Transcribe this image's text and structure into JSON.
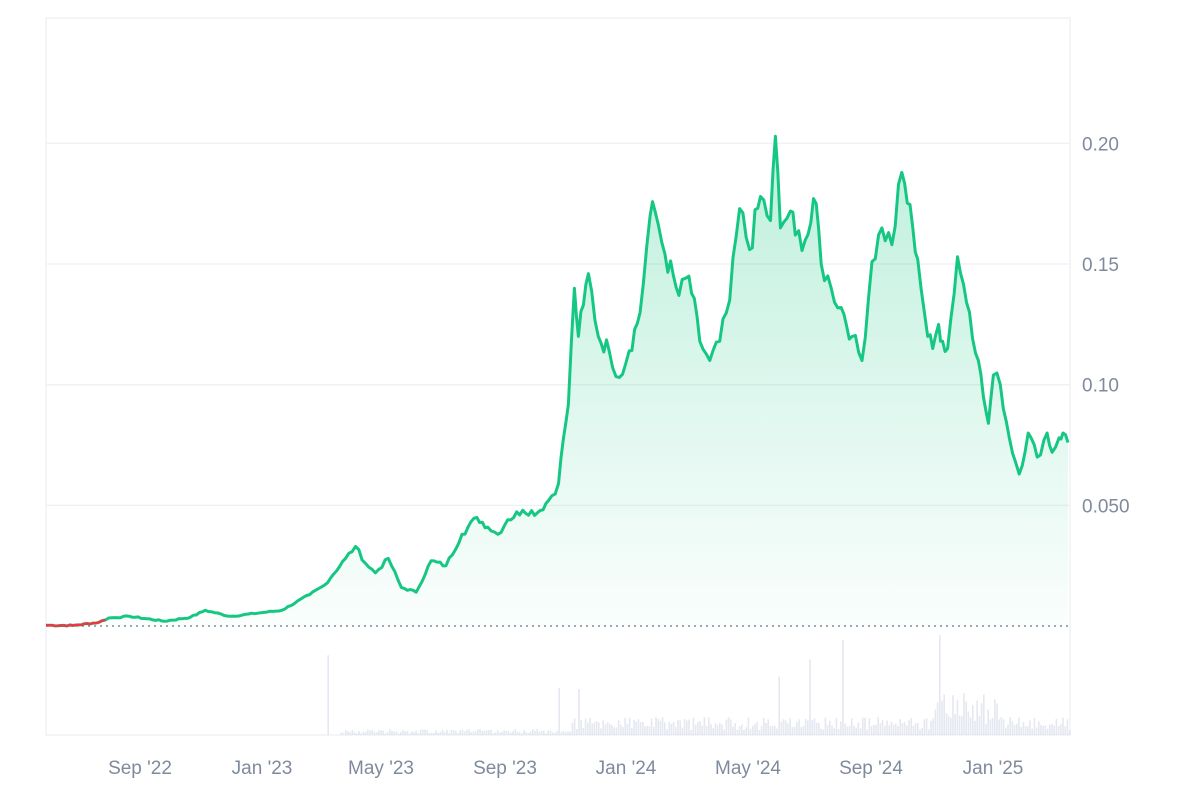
{
  "chart_data": {
    "type": "area",
    "title": "",
    "xlabel": "",
    "ylabel": "",
    "x_tick_labels": [
      "Sep '22",
      "Jan '23",
      "May '23",
      "Sep '23",
      "Jan '24",
      "May '24",
      "Sep '24",
      "Jan '25"
    ],
    "y_tick_labels": [
      "0.20",
      "0.15",
      "0.10",
      "0.050"
    ],
    "y_ticks": [
      0.2,
      0.15,
      0.1,
      0.05
    ],
    "ylim": [
      0,
      0.25
    ],
    "xlim": [
      "2022-06-18",
      "2025-04-12"
    ],
    "grid": true,
    "baseline": 0.0,
    "colors": {
      "line": "#16c784",
      "start_segment": "#ea3943",
      "volume": "#cfd6e4"
    },
    "series": [
      {
        "x": [
          "2022-06-18",
          "2022-07-15",
          "2022-08-10",
          "2022-08-20",
          "2022-09-10",
          "2022-10-15",
          "2022-11-10",
          "2022-11-25",
          "2022-12-20",
          "2023-01-20",
          "2023-02-10",
          "2023-03-10",
          "2023-03-25",
          "2023-04-15",
          "2023-04-25",
          "2023-05-05",
          "2023-05-15",
          "2023-05-28",
          "2023-06-10",
          "2023-06-25",
          "2023-07-10",
          "2023-07-25",
          "2023-08-10",
          "2023-08-25",
          "2023-09-05",
          "2023-09-15",
          "2023-09-25",
          "2023-10-10",
          "2023-10-25",
          "2023-11-05",
          "2023-11-15",
          "2023-11-20",
          "2023-11-25",
          "2023-12-01",
          "2023-12-05",
          "2023-12-10",
          "2023-12-15",
          "2023-12-25",
          "2024-01-05",
          "2024-01-15",
          "2024-01-25",
          "2024-02-05",
          "2024-02-15",
          "2024-02-20",
          "2024-03-01",
          "2024-03-15",
          "2024-03-25",
          "2024-04-05",
          "2024-04-15",
          "2024-04-25",
          "2024-05-05",
          "2024-05-15",
          "2024-05-25",
          "2024-06-05",
          "2024-06-15",
          "2024-06-20",
          "2024-06-25",
          "2024-07-05",
          "2024-07-10",
          "2024-07-20",
          "2024-07-31",
          "2024-08-05",
          "2024-08-15",
          "2024-08-25",
          "2024-09-05",
          "2024-09-15",
          "2024-09-25",
          "2024-10-05",
          "2024-10-15",
          "2024-10-25",
          "2024-11-05",
          "2024-11-10",
          "2024-11-20",
          "2024-11-25",
          "2024-12-01",
          "2024-12-05",
          "2024-12-10",
          "2024-12-20",
          "2025-01-01",
          "2025-01-10",
          "2025-01-15",
          "2025-01-20",
          "2025-01-25",
          "2025-02-01",
          "2025-02-10",
          "2025-02-20",
          "2025-03-01",
          "2025-03-10",
          "2025-03-20",
          "2025-03-25",
          "2025-04-01",
          "2025-04-05",
          "2025-04-10"
        ],
        "values": [
          0.0003,
          0.0002,
          0.0015,
          0.0033,
          0.004,
          0.002,
          0.0036,
          0.0065,
          0.004,
          0.0055,
          0.0065,
          0.013,
          0.017,
          0.028,
          0.033,
          0.026,
          0.022,
          0.028,
          0.016,
          0.014,
          0.027,
          0.025,
          0.038,
          0.045,
          0.041,
          0.038,
          0.044,
          0.048,
          0.047,
          0.052,
          0.059,
          0.078,
          0.092,
          0.14,
          0.12,
          0.133,
          0.146,
          0.12,
          0.114,
          0.103,
          0.114,
          0.13,
          0.17,
          0.172,
          0.154,
          0.137,
          0.145,
          0.118,
          0.11,
          0.118,
          0.135,
          0.173,
          0.156,
          0.178,
          0.168,
          0.203,
          0.165,
          0.172,
          0.162,
          0.16,
          0.175,
          0.15,
          0.14,
          0.132,
          0.12,
          0.11,
          0.151,
          0.165,
          0.158,
          0.188,
          0.165,
          0.152,
          0.12,
          0.115,
          0.125,
          0.118,
          0.115,
          0.153,
          0.13,
          0.11,
          0.095,
          0.084,
          0.104,
          0.1,
          0.078,
          0.063,
          0.08,
          0.07,
          0.08,
          0.072,
          0.078,
          0.08,
          0.076
        ]
      }
    ]
  }
}
